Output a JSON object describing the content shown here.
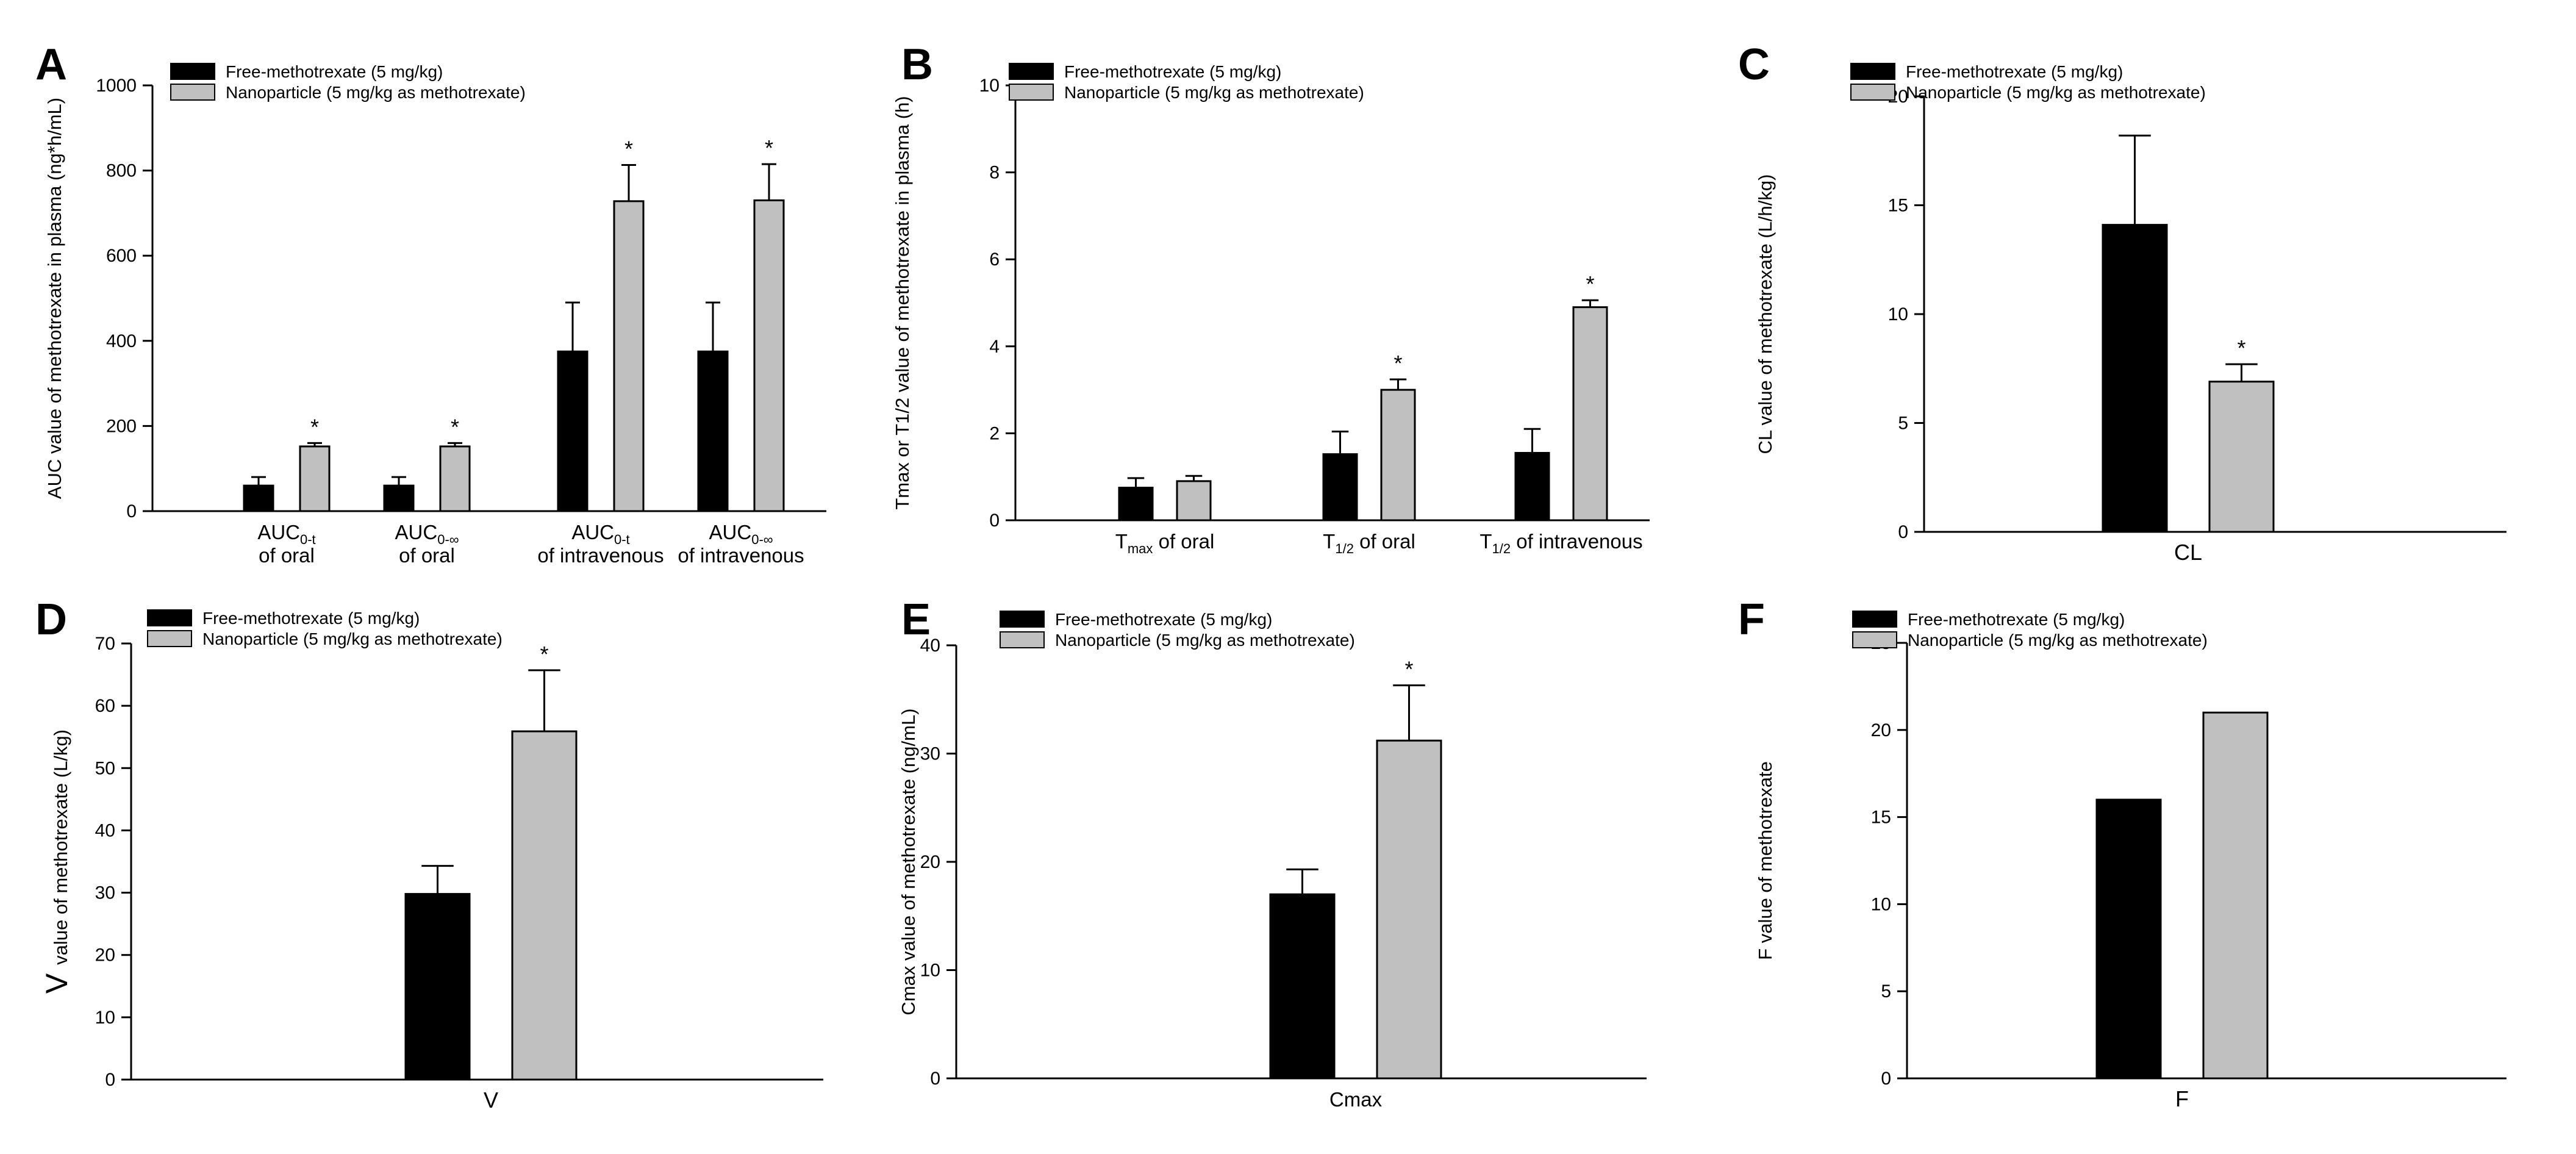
{
  "legend": {
    "free_label": "Free-methotrexate (5 mg/kg)",
    "nano_label": "Nanoparticle (5 mg/kg as methotrexate)"
  },
  "colors": {
    "free": "#000000",
    "nano": "#c0c0c0",
    "axis": "#000000"
  },
  "chart_data": [
    {
      "panel": "A",
      "type": "bar",
      "ylabel": "AUC value of methotrexate in plasma (ng*h/mL)",
      "ylim": [
        0,
        1000
      ],
      "yticks": [
        0,
        200,
        400,
        600,
        800,
        1000
      ],
      "categories": [
        {
          "main": "AUC",
          "sub": "0-t",
          "line2": "of oral"
        },
        {
          "main": "AUC",
          "sub": "0-∞",
          "line2": "of oral"
        },
        {
          "main": "AUC",
          "sub": "0-t",
          "line2": "of intravenous"
        },
        {
          "main": "AUC",
          "sub": "0-∞",
          "line2": "of intravenous"
        }
      ],
      "series": [
        {
          "name": "Free-methotrexate (5 mg/kg)",
          "values": [
            60,
            60,
            375,
            375
          ],
          "errors": [
            20,
            20,
            115,
            115
          ]
        },
        {
          "name": "Nanoparticle (5 mg/kg as methotrexate)",
          "values": [
            152,
            152,
            728,
            730
          ],
          "errors": [
            8,
            8,
            85,
            85
          ]
        }
      ],
      "significance": [
        "*",
        "*",
        "*",
        "*"
      ]
    },
    {
      "panel": "B",
      "type": "bar",
      "ylabel": "Tmax or T1/2 value of methotrexate in plasma (h)",
      "ylim": [
        0,
        10
      ],
      "yticks": [
        0,
        2,
        4,
        6,
        8,
        10
      ],
      "categories": [
        {
          "main": "T",
          "sub": "max",
          "line2": "",
          "tail": " of oral"
        },
        {
          "main": "T",
          "sub": "1/2",
          "line2": "",
          "tail": " of oral"
        },
        {
          "main": "T",
          "sub": "1/2",
          "line2": "",
          "tail": " of intravenous"
        }
      ],
      "series": [
        {
          "name": "Free-methotrexate (5 mg/kg)",
          "values": [
            0.75,
            1.52,
            1.55
          ],
          "errors": [
            0.22,
            0.52,
            0.55
          ]
        },
        {
          "name": "Nanoparticle (5 mg/kg as methotrexate)",
          "values": [
            0.9,
            3.0,
            4.9
          ],
          "errors": [
            0.12,
            0.24,
            0.16
          ]
        }
      ],
      "significance": [
        "",
        "*",
        "*"
      ]
    },
    {
      "panel": "C",
      "type": "bar",
      "ylabel": "CL value of methotrexate (L/h/kg)",
      "ylim": [
        0,
        20
      ],
      "yticks": [
        0,
        5,
        10,
        15,
        20
      ],
      "categories": [
        {
          "main": "CL",
          "sub": "",
          "line2": ""
        }
      ],
      "series": [
        {
          "name": "Free-methotrexate (5 mg/kg)",
          "values": [
            14.1
          ],
          "errors": [
            4.1
          ]
        },
        {
          "name": "Nanoparticle (5 mg/kg as methotrexate)",
          "values": [
            6.9
          ],
          "errors": [
            0.8
          ]
        }
      ],
      "significance": [
        "*"
      ]
    },
    {
      "panel": "D",
      "type": "bar",
      "ylabel": "value of methotrexate (L/kg)",
      "ylabel_prefix": "V",
      "ylim": [
        0,
        70
      ],
      "yticks": [
        0,
        10,
        20,
        30,
        40,
        50,
        60,
        70
      ],
      "categories": [
        {
          "main": "V",
          "sub": "",
          "line2": ""
        }
      ],
      "series": [
        {
          "name": "Free-methotrexate (5 mg/kg)",
          "values": [
            29.8
          ],
          "errors": [
            4.5
          ]
        },
        {
          "name": "Nanoparticle (5 mg/kg as methotrexate)",
          "values": [
            55.9
          ],
          "errors": [
            9.8
          ]
        }
      ],
      "significance": [
        "*"
      ]
    },
    {
      "panel": "E",
      "type": "bar",
      "ylabel": "Cmax value of methotrexate (ng/mL)",
      "ylim": [
        0,
        40
      ],
      "yticks": [
        0,
        10,
        20,
        30,
        40
      ],
      "categories": [
        {
          "main": "Cmax",
          "sub": "",
          "line2": ""
        }
      ],
      "series": [
        {
          "name": "Free-methotrexate (5 mg/kg)",
          "values": [
            17.0
          ],
          "errors": [
            2.3
          ]
        },
        {
          "name": "Nanoparticle (5 mg/kg as methotrexate)",
          "values": [
            31.2
          ],
          "errors": [
            5.1
          ]
        }
      ],
      "significance": [
        "*"
      ]
    },
    {
      "panel": "F",
      "type": "bar",
      "ylabel": "F value of methotrexate",
      "ylim": [
        0,
        25
      ],
      "yticks": [
        0,
        5,
        10,
        15,
        20,
        25
      ],
      "categories": [
        {
          "main": "F",
          "sub": "",
          "line2": ""
        }
      ],
      "series": [
        {
          "name": "Free-methotrexate (5 mg/kg)",
          "values": [
            16.0
          ],
          "errors": [
            0
          ]
        },
        {
          "name": "Nanoparticle (5 mg/kg as methotrexate)",
          "values": [
            21.0
          ],
          "errors": [
            0
          ]
        }
      ],
      "significance": [
        ""
      ]
    }
  ]
}
